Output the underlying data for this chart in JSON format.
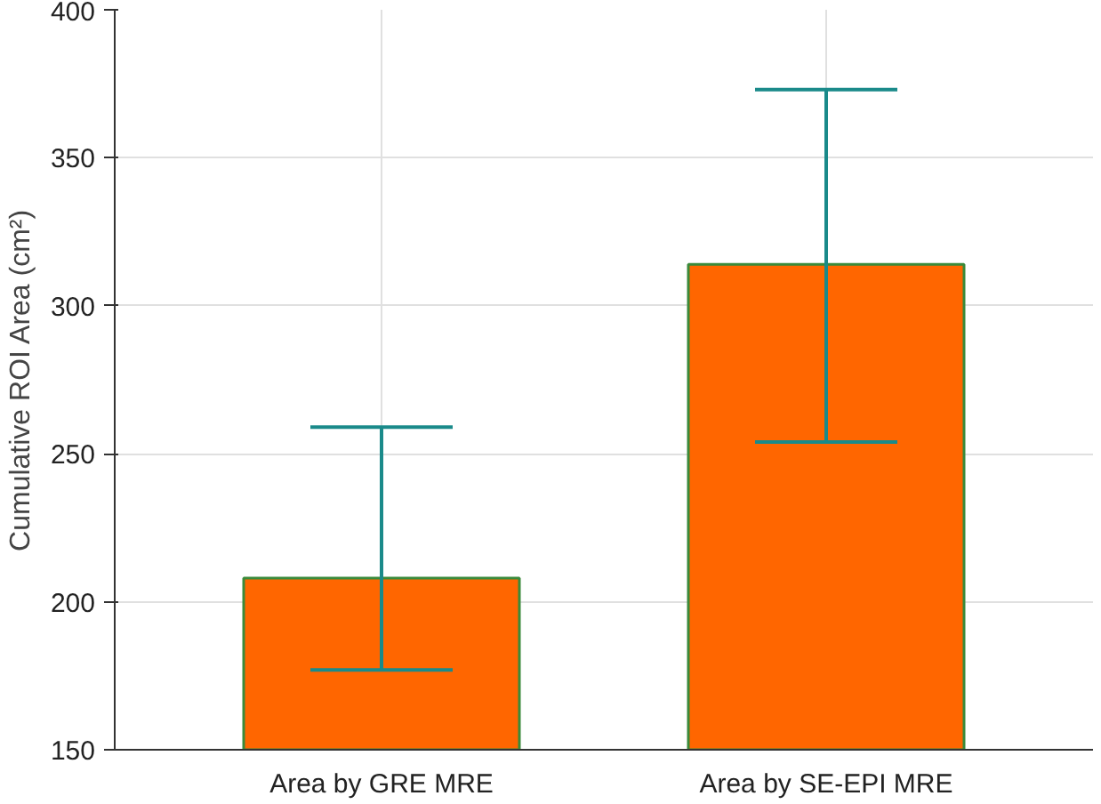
{
  "chart_data": {
    "type": "bar",
    "categories": [
      "Area by GRE MRE",
      "Area by SE-EPI MRE"
    ],
    "values": [
      208,
      314
    ],
    "errors": [
      [
        177,
        259
      ],
      [
        254,
        373
      ]
    ],
    "color": "#ff6600",
    "ylabel": "Cumulative ROI Area (cm²)",
    "ylim": [
      150,
      400
    ],
    "yticks": [
      150,
      200,
      250,
      300,
      350,
      400
    ],
    "grid": true
  }
}
